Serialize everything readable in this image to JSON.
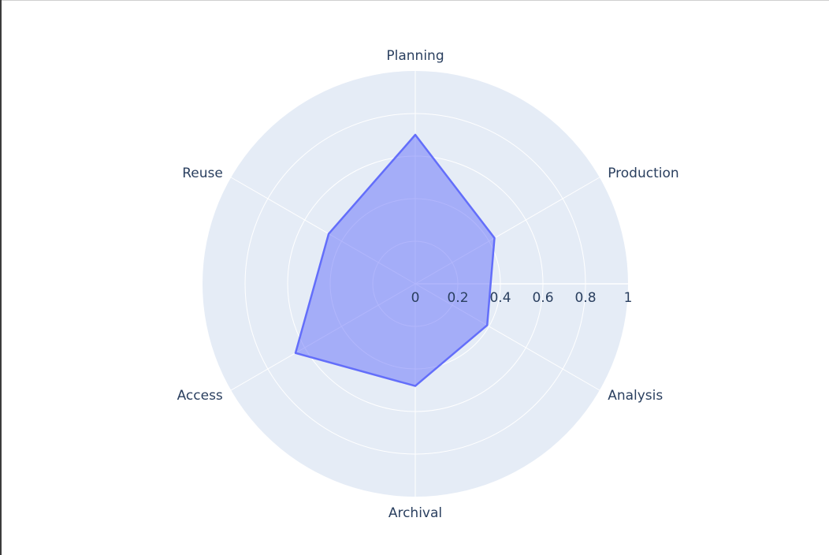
{
  "chart_data": {
    "type": "radar",
    "categories": [
      "Planning",
      "Production",
      "Analysis",
      "Archival",
      "Access",
      "Reuse"
    ],
    "series": [
      {
        "values": [
          0.7,
          0.43,
          0.39,
          0.48,
          0.65,
          0.47
        ],
        "color": "#636efa",
        "fill": "rgba(99,110,250,0.5)"
      }
    ],
    "radial_ticks": [
      "0",
      "0.2",
      "0.4",
      "0.6",
      "0.8",
      "1"
    ],
    "radial_tick_values": [
      0,
      0.2,
      0.4,
      0.6,
      0.8,
      1
    ],
    "rlim": [
      0,
      1
    ],
    "grid": true,
    "background_color": "#e5ecf6",
    "grid_color": "#ffffff",
    "text_color": "#2a3f5f"
  }
}
